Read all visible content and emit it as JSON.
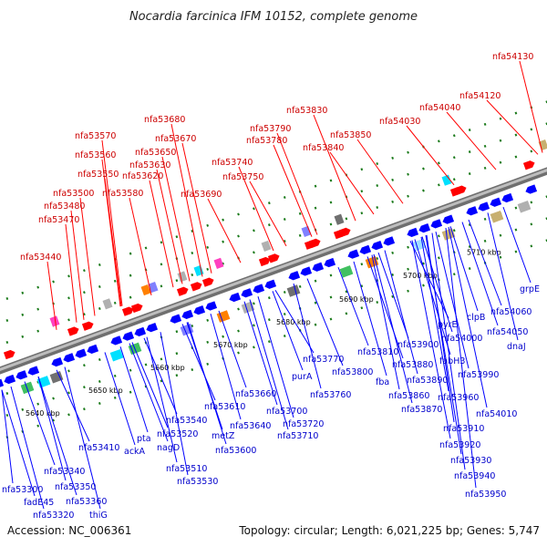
{
  "title": "Nocardia farcinica IFM 10152, complete genome",
  "accession": "Accession: NC_006361",
  "summary": "Topology: circular; Length: 6,021,225 bp; Genes: 5,747",
  "colors": {
    "forward_gene": "#ff0000",
    "reverse_gene": "#0000ff",
    "forward_label": "#cc0000",
    "reverse_label": "#0000cc",
    "genome_band": "#888888",
    "tick": "#1a7a1a"
  },
  "scale": {
    "ticks": [
      {
        "label": "5640 kbp"
      },
      {
        "label": "5650 kbp"
      },
      {
        "label": "5660 kbp"
      },
      {
        "label": "5670 kbp"
      },
      {
        "label": "5680 kbp"
      },
      {
        "label": "5690 kbp"
      },
      {
        "label": "5700 kbp"
      },
      {
        "label": "5710 kbp"
      }
    ]
  },
  "forward_labels": [
    "nfa53440",
    "nfa53470",
    "nfa53480",
    "nfa53500",
    "nfa53550",
    "nfa53560",
    "nfa53570",
    "nfa53580",
    "nfa53620",
    "nfa53630",
    "nfa53650",
    "nfa53670",
    "nfa53680",
    "nfa53690",
    "nfa53740",
    "nfa53750",
    "nfa53780",
    "nfa53790",
    "nfa53830",
    "nfa53840",
    "nfa53850",
    "nfa54030",
    "nfa54040",
    "nfa54120",
    "nfa54130"
  ],
  "reverse_labels": [
    "nfa53300",
    "fadE45",
    "nfa53320",
    "nfa53340",
    "nfa53350",
    "nfa53360",
    "thiG",
    "nfa53410",
    "ackA",
    "pta",
    "nagD",
    "nfa53520",
    "nfa53540",
    "nfa53510",
    "nfa53530",
    "nfa53600",
    "metZ",
    "nfa53610",
    "nfa53640",
    "nfa53660",
    "nfa53710",
    "nfa53720",
    "nfa53700",
    "purA",
    "nfa53760",
    "nfa53770",
    "nfa53800",
    "fba",
    "nfa53810",
    "nfa53860",
    "nfa53870",
    "nfa53880",
    "nfa53890",
    "nfa53900",
    "nfa53910",
    "nfa53920",
    "nfa53930",
    "nfa53940",
    "nfa53950",
    "nfa53960",
    "pyrE",
    "fabH3",
    "nfa53990",
    "nfa54000",
    "clpB",
    "nfa54010",
    "nfa54050",
    "nfa54060",
    "dnaJ",
    "grpE"
  ]
}
